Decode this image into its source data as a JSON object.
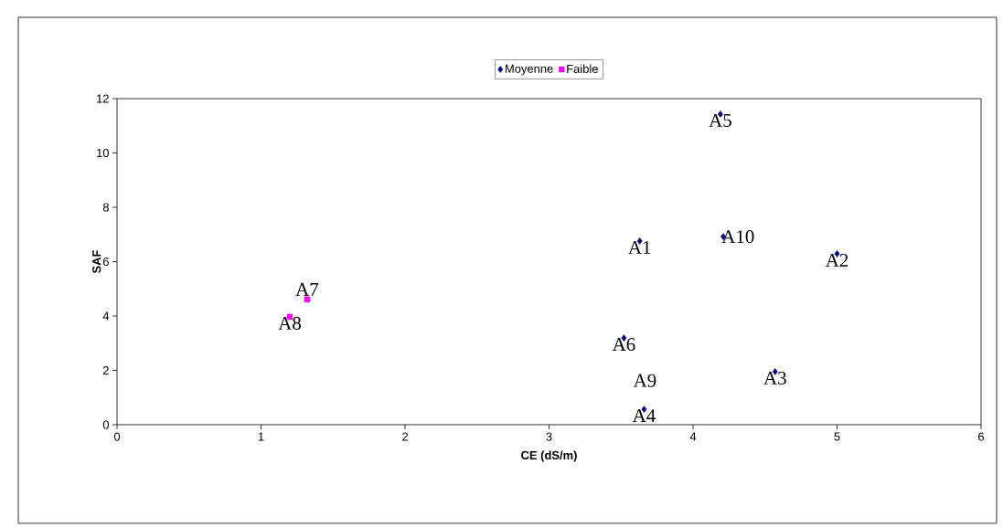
{
  "chart_data": {
    "type": "scatter",
    "xlabel": "CE (dS/m)",
    "ylabel": "SAF",
    "xlim": [
      0,
      6
    ],
    "xticks": [
      0,
      1,
      2,
      3,
      4,
      5,
      6
    ],
    "ylim": [
      0,
      12
    ],
    "yticks": [
      0,
      2,
      4,
      6,
      8,
      10,
      12
    ],
    "grid": false,
    "legend": "top",
    "series": [
      {
        "name": "Moyenne",
        "color": "#000080",
        "marker": "diamond",
        "x": [
          3.63,
          5.0,
          4.57,
          3.66,
          4.19,
          3.52,
          4.21
        ],
        "values": [
          6.76,
          6.29,
          1.95,
          0.57,
          11.43,
          3.19,
          6.92
        ]
      },
      {
        "name": "Faible",
        "color": "#ff00ff",
        "marker": "square",
        "x": [
          1.32,
          1.2
        ],
        "values": [
          4.61,
          3.97
        ]
      }
    ],
    "annotations": [
      {
        "text": "A1",
        "x": 3.63,
        "y": 6.76
      },
      {
        "text": "A2",
        "x": 5.0,
        "y": 6.29
      },
      {
        "text": "A3",
        "x": 4.57,
        "y": 1.95
      },
      {
        "text": "A4",
        "x": 3.66,
        "y": 0.57
      },
      {
        "text": "A5",
        "x": 4.19,
        "y": 11.43
      },
      {
        "text": "A6",
        "x": 3.52,
        "y": 3.19
      },
      {
        "text": "A7",
        "x": 1.32,
        "y": 4.61
      },
      {
        "text": "A8",
        "x": 1.2,
        "y": 3.97
      },
      "A9",
      {
        "text": "A10",
        "x": 4.21,
        "y": 6.92
      }
    ]
  }
}
